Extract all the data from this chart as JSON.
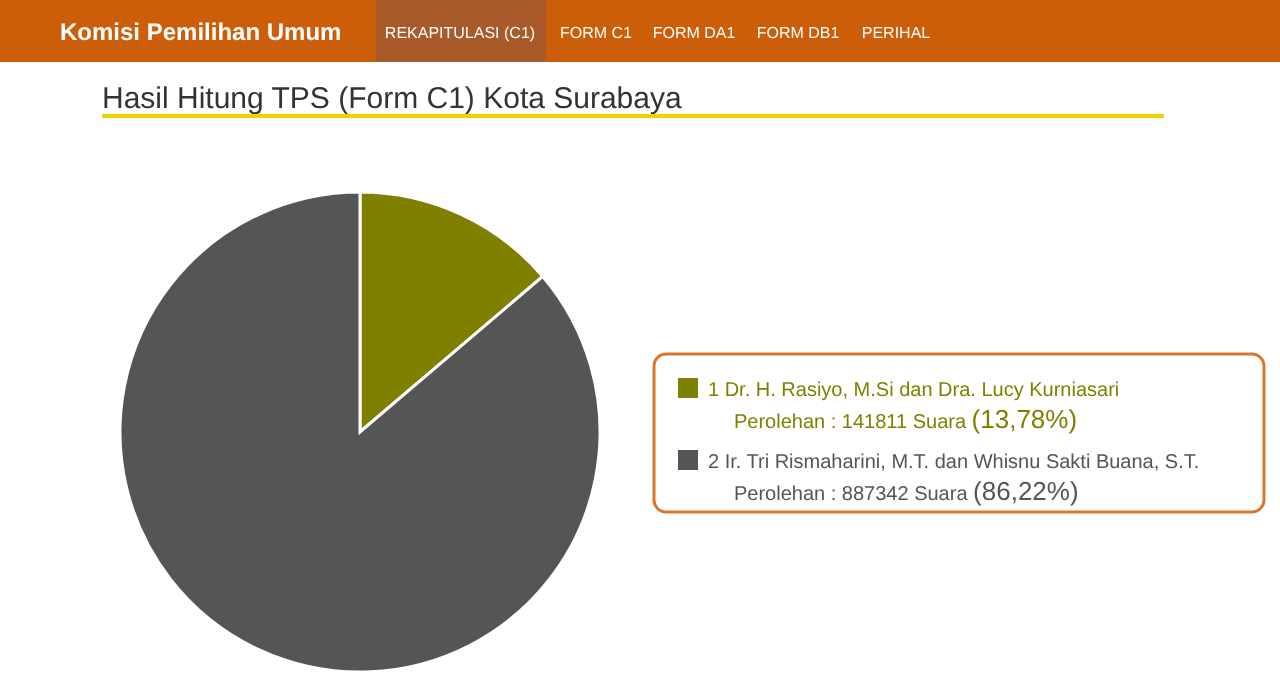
{
  "chart_data": {
    "type": "pie",
    "title": "Hasil Hitung TPS (Form C1) Kota Surabaya",
    "categories": [
      "1 Dr. H. Rasiyo, M.Si dan Dra. Lucy Kurniasari",
      "2 Ir. Tri Rismaharini, M.T. dan Whisnu Sakti Buana, S.T."
    ],
    "values": [
      141811,
      887342
    ],
    "colors": [
      "#808000",
      "#555555"
    ],
    "value_labels": [
      "Perolehan : 141811 Suara (13,78%)",
      "Perolehan : 887342 Suara (86,22%)"
    ],
    "legend": "right",
    "annotations": [
      "Komisi Pemilihan Umum",
      "REKAPITULASI (C1)",
      "FORM C1",
      "FORM DA1",
      "FORM DB1",
      "PERIHAL"
    ]
  }
}
